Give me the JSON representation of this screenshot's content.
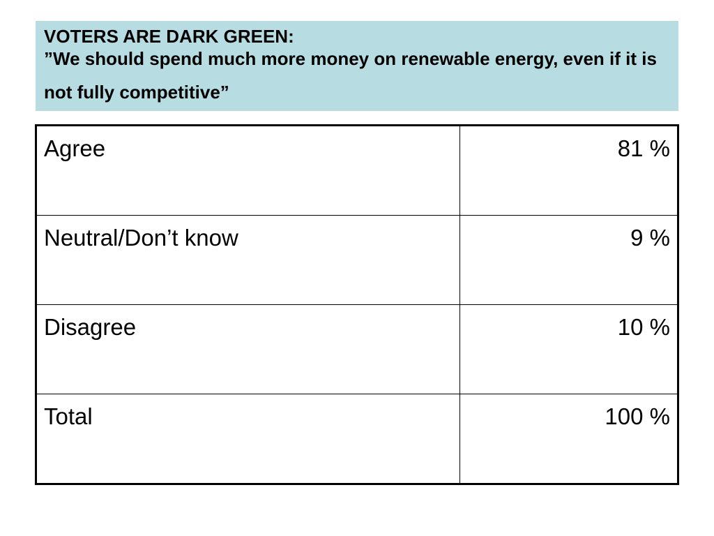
{
  "title": {
    "heading": "VOTERS ARE DARK GREEN:",
    "quote": "”We should spend much more money on renewable energy, even if it is not fully competitive”"
  },
  "table": {
    "rows": [
      {
        "label": "Agree",
        "value": "81 %"
      },
      {
        "label": "Neutral/Don’t know",
        "value": "9 %"
      },
      {
        "label": "Disagree",
        "value": "10 %"
      },
      {
        "label": "Total",
        "value": "100 %"
      }
    ]
  },
  "colors": {
    "title_background": "#b7dde2",
    "border": "#000000"
  }
}
